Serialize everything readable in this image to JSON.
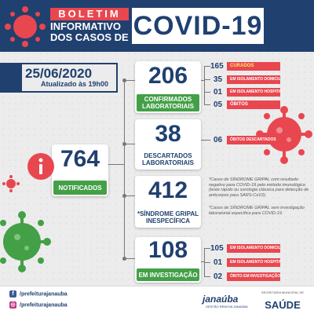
{
  "header": {
    "boletim": "BOLETIM",
    "line2": "INFORMATIVO",
    "line3": "DOS CASOS DE",
    "covid": "COVID-19"
  },
  "date": {
    "value": "25/06/2020",
    "updated": "Atualizado às 19h00"
  },
  "notificados": {
    "value": "764",
    "label": "NOTIFICADOS"
  },
  "confirmados": {
    "value": "206",
    "label_1": "CONFIRMADOS",
    "label_2": "LABORATORIAIS"
  },
  "descartados": {
    "value": "38",
    "label_1": "DESCARTADOS",
    "label_2": "LABORATORIAIS"
  },
  "sindrome": {
    "value": "412",
    "label_1": "*SÍNDROME GRIPAL",
    "label_2": "INESPECÍFICA"
  },
  "investigacao": {
    "value": "108",
    "label": "EM INVESTIGAÇÃO"
  },
  "confirmados_details": [
    {
      "value": "165",
      "label": "CURADOS",
      "highlight": true
    },
    {
      "value": "35",
      "label": "EM ISOLAMENTO DOMICILIAR"
    },
    {
      "value": "01",
      "label": "EM ISOLAMENTO HOSPITALAR"
    },
    {
      "value": "05",
      "label": "ÓBITOS"
    }
  ],
  "descartados_details": [
    {
      "value": "06",
      "label": "ÓBITOS DESCARTADOS"
    }
  ],
  "investigacao_details": [
    {
      "value": "105",
      "label": "EM ISOLAMENTO DOMICILIAR"
    },
    {
      "value": "01",
      "label": "EM ISOLAMENTO HOSPITALAR"
    },
    {
      "value": "02",
      "label": "ÓBITO EM INVESTIGAÇÃO"
    }
  ],
  "notes": {
    "note1": "*Casos de SÍNDROME GRIPAL com resultado negativo para COVID-19 pelo método imunológico (teste rápido ou sorologia clássica para detecção de anticorpos para SARS-CoV2).",
    "note2": "*Casos de SÍNDROME GRIPAL sem investigação laboratorial específica para COVID-19."
  },
  "footer": {
    "facebook": "/prefeiturajanauba",
    "instagram": "/prefeiturajanauba",
    "logo": "janaúba",
    "logo_sub": "GESTÃO RENOVA JANAÚBA",
    "sec_small": "SECRETARIA MUNICIPAL DE",
    "sec_big": "SAÚDE"
  },
  "colors": {
    "navy": "#20406f",
    "red": "#e8474f",
    "green": "#43a047"
  }
}
